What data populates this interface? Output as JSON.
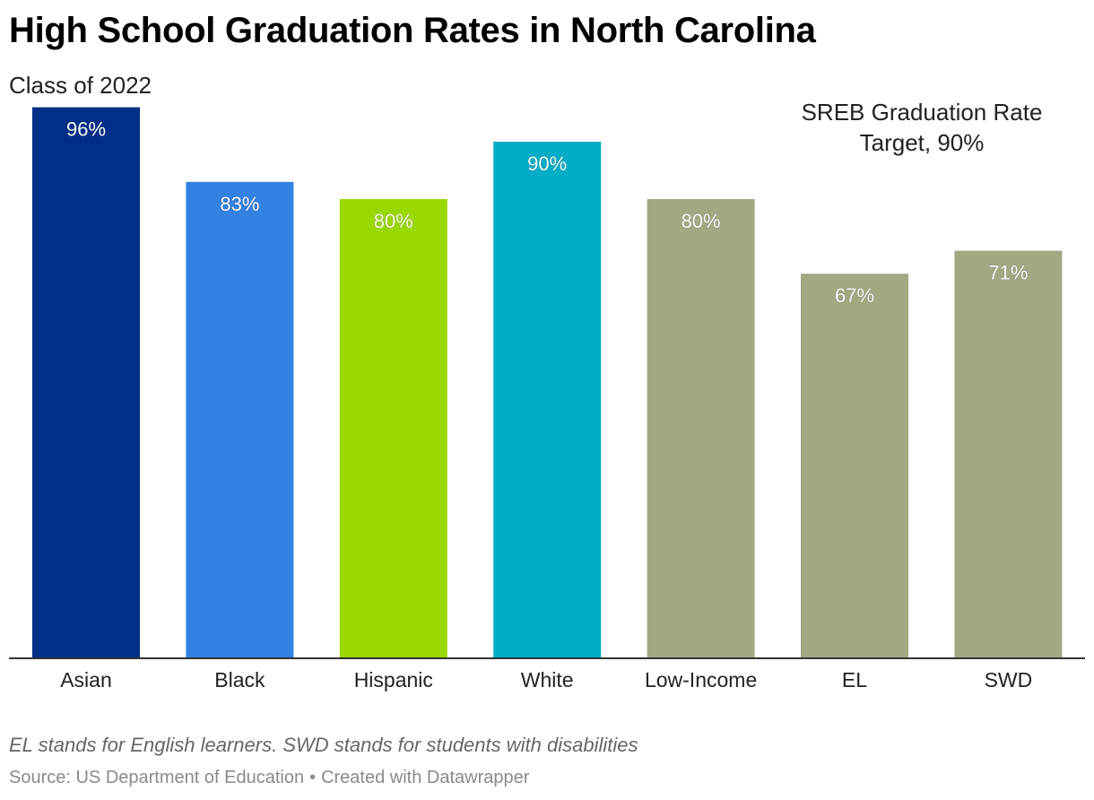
{
  "header": {
    "title": "High School Graduation Rates in North Carolina",
    "subtitle": "Class of 2022"
  },
  "annotation": {
    "line1": "SREB Graduation Rate",
    "line2": "Target, 90%"
  },
  "footer": {
    "note": "EL stands for English learners. SWD stands for students with disabilities",
    "source": "Source: US Department of Education",
    "separator": "•",
    "credit": "Created with Datawrapper"
  },
  "chart_data": {
    "type": "bar",
    "title": "High School Graduation Rates in North Carolina",
    "subtitle": "Class of 2022",
    "categories": [
      "Asian",
      "Black",
      "Hispanic",
      "White",
      "Low-Income",
      "EL",
      "SWD"
    ],
    "values": [
      96,
      83,
      80,
      90,
      80,
      67,
      71
    ],
    "value_labels": [
      "96%",
      "83%",
      "80%",
      "90%",
      "80%",
      "67%",
      "71%"
    ],
    "colors": [
      "#002f87",
      "#3381e3",
      "#99d800",
      "#00adc6",
      "#a3a883",
      "#a3a883",
      "#a3a883"
    ],
    "ylim": [
      0,
      100
    ],
    "grid": false,
    "legend": "none",
    "target": 90
  }
}
